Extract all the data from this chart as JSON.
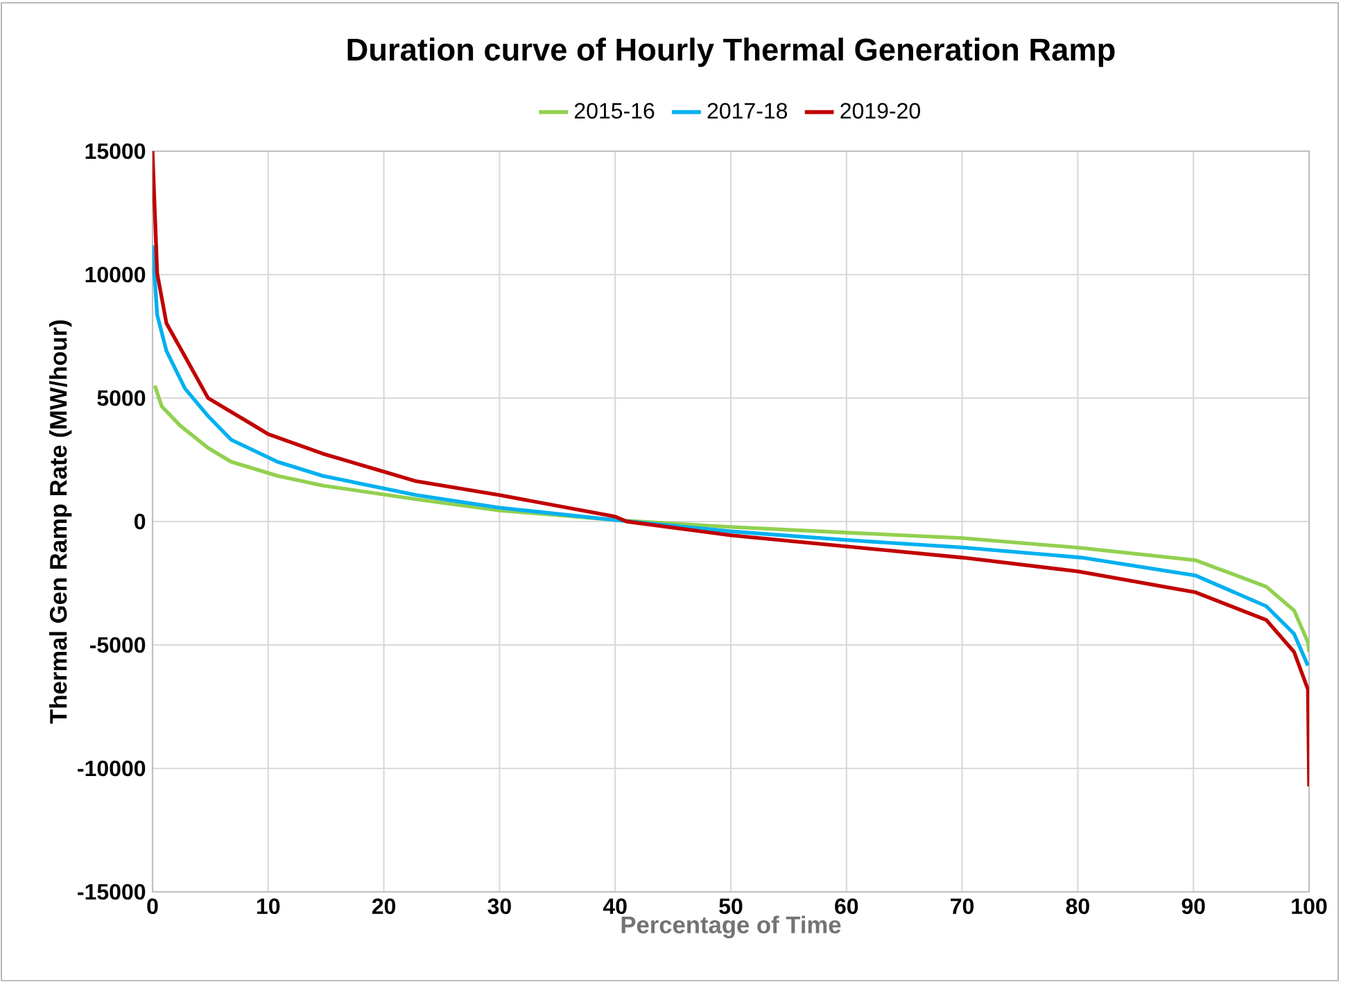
{
  "chart_data": {
    "type": "line",
    "title": "Duration curve of Hourly Thermal Generation Ramp",
    "xlabel": "Percentage of Time",
    "ylabel": "Thermal Gen Ramp Rate (MW/hour)",
    "xlim": [
      0,
      100
    ],
    "ylim": [
      -15000,
      15000
    ],
    "xticks": [
      0,
      10,
      20,
      30,
      40,
      50,
      60,
      70,
      80,
      90,
      100
    ],
    "yticks": [
      -15000,
      -10000,
      -5000,
      0,
      5000,
      10000,
      15000
    ],
    "grid": true,
    "legend": "top",
    "marker": "none",
    "line_style": "solid",
    "series": [
      {
        "name": "2015-16",
        "color": "#92d050",
        "x": [
          0.2,
          0.8,
          2.4,
          4.8,
          6.8,
          10.8,
          14.7,
          22.8,
          30,
          40,
          50,
          60,
          70,
          80.3,
          90.2,
          96.3,
          98.7,
          99.9,
          100
        ],
        "values": [
          5500,
          4660,
          3880,
          2980,
          2420,
          1850,
          1460,
          900,
          450,
          60,
          -220,
          -450,
          -670,
          -1070,
          -1570,
          -2640,
          -3600,
          -4890,
          -5280
        ]
      },
      {
        "name": "2017-18",
        "color": "#00b0f0",
        "x": [
          0,
          0.4,
          1.2,
          2.8,
          4.8,
          6.8,
          10.8,
          14.7,
          22.8,
          30,
          40,
          50,
          60,
          70,
          80.3,
          90.2,
          96.3,
          98.7,
          99.9
        ],
        "values": [
          11180,
          8370,
          6910,
          5390,
          4270,
          3310,
          2420,
          1850,
          1070,
          560,
          60,
          -400,
          -750,
          -1050,
          -1460,
          -2190,
          -3430,
          -4550,
          -5840
        ]
      },
      {
        "name": "2019-20",
        "color": "#c00000",
        "x": [
          0,
          0.2,
          0.4,
          1.2,
          2.8,
          4.8,
          8.8,
          10,
          14.7,
          20,
          22.8,
          30,
          40,
          41,
          50,
          60,
          70,
          80,
          90.2,
          96.3,
          98.7,
          99.9,
          100
        ],
        "values": [
          15000,
          12500,
          10060,
          8030,
          6690,
          5000,
          3880,
          3540,
          2750,
          2020,
          1630,
          1070,
          200,
          0,
          -560,
          -1010,
          -1460,
          -2020,
          -2870,
          -3990,
          -5280,
          -6800,
          -10730
        ]
      }
    ]
  }
}
